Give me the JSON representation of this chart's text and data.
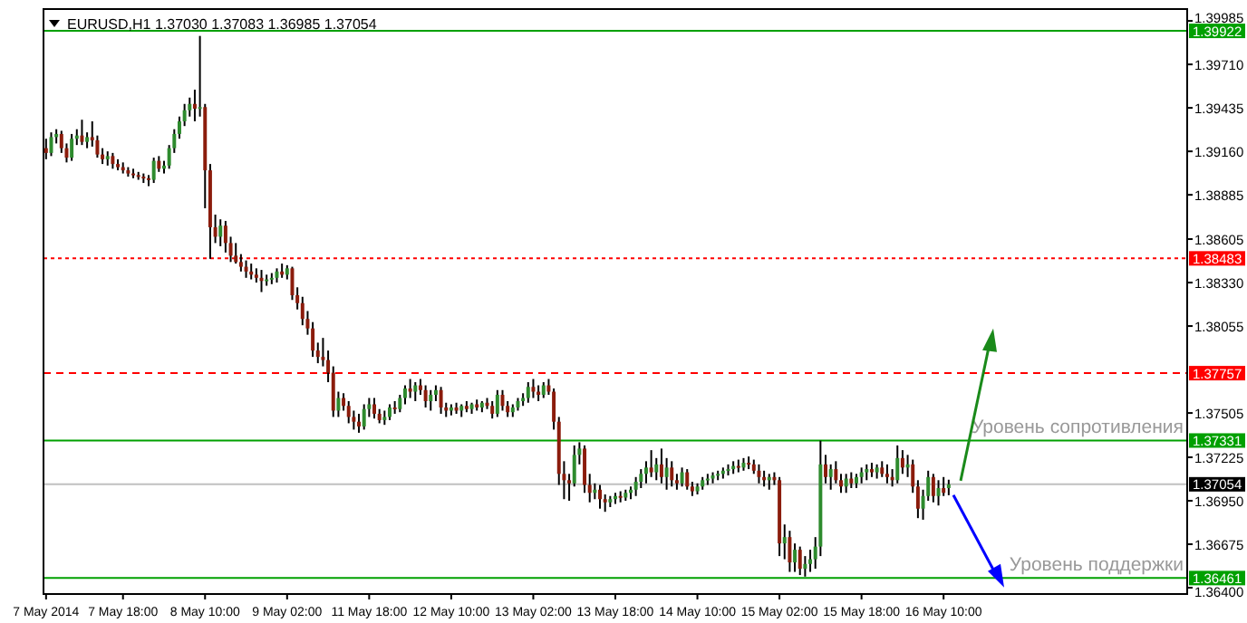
{
  "chart_data": {
    "type": "candlestick",
    "title": "EURUSD,H1 1.37030 1.37083 1.36985 1.37054",
    "categories": [
      "7 May 2014",
      null,
      null,
      null,
      null,
      null,
      null,
      null,
      null,
      null,
      null,
      null,
      null,
      null,
      null,
      "7 May 18:00",
      null,
      null,
      null,
      null,
      null,
      null,
      null,
      null,
      null,
      null,
      null,
      null,
      null,
      null,
      null,
      "8 May 10:00",
      null,
      null,
      null,
      null,
      null,
      null,
      null,
      null,
      null,
      null,
      null,
      null,
      null,
      null,
      null,
      "9 May 02:00",
      null,
      null,
      null,
      null,
      null,
      null,
      null,
      null,
      null,
      null,
      null,
      null,
      null,
      null,
      null,
      "11 May 18:00",
      null,
      null,
      null,
      null,
      null,
      null,
      null,
      null,
      null,
      null,
      null,
      null,
      null,
      null,
      null,
      "12 May 10:00",
      null,
      null,
      null,
      null,
      null,
      null,
      null,
      null,
      null,
      null,
      null,
      null,
      null,
      null,
      null,
      "13 May 02:00",
      null,
      null,
      null,
      null,
      null,
      null,
      null,
      null,
      null,
      null,
      null,
      null,
      null,
      null,
      null,
      "13 May 18:00",
      null,
      null,
      null,
      null,
      null,
      null,
      null,
      null,
      null,
      null,
      null,
      null,
      null,
      null,
      null,
      "14 May 10:00",
      null,
      null,
      null,
      null,
      null,
      null,
      null,
      null,
      null,
      null,
      null,
      null,
      null,
      null,
      null,
      "15 May 02:00",
      null,
      null,
      null,
      null,
      null,
      null,
      null,
      null,
      null,
      null,
      null,
      null,
      null,
      null,
      null,
      "15 May 18:00",
      null,
      null,
      null,
      null,
      null,
      null,
      null,
      null,
      null,
      null,
      null,
      null,
      null,
      null,
      null,
      "16 May 10:00",
      null,
      null,
      null,
      null,
      null,
      null,
      null,
      null,
      null,
      null,
      null,
      null,
      null,
      null,
      null,
      null,
      null,
      null,
      null,
      null,
      null,
      null,
      null,
      null,
      null,
      null,
      null,
      null,
      null,
      null,
      null,
      null,
      null,
      null,
      null,
      null,
      null,
      null,
      null,
      null,
      null,
      null,
      null,
      null,
      null,
      null,
      null
    ],
    "ohlc": [
      [
        1.3918,
        1.3924,
        1.3911,
        1.3915
      ],
      [
        1.3915,
        1.3928,
        1.3913,
        1.3925
      ],
      [
        1.3925,
        1.393,
        1.3921,
        1.3927
      ],
      [
        1.3927,
        1.3929,
        1.3915,
        1.3918
      ],
      [
        1.3918,
        1.3921,
        1.3909,
        1.3912
      ],
      [
        1.3912,
        1.3927,
        1.391,
        1.3924
      ],
      [
        1.3924,
        1.393,
        1.392,
        1.3926
      ],
      [
        1.3926,
        1.3936,
        1.392,
        1.3922
      ],
      [
        1.3922,
        1.3928,
        1.3918,
        1.3925
      ],
      [
        1.3925,
        1.3935,
        1.3919,
        1.3923
      ],
      [
        1.3923,
        1.3926,
        1.3912,
        1.3914
      ],
      [
        1.3914,
        1.3918,
        1.3908,
        1.3911
      ],
      [
        1.3911,
        1.3916,
        1.3907,
        1.3913
      ],
      [
        1.3913,
        1.3915,
        1.3905,
        1.3908
      ],
      [
        1.3908,
        1.3911,
        1.3904,
        1.3906
      ],
      [
        1.3906,
        1.3909,
        1.3902,
        1.3904
      ],
      [
        1.3904,
        1.3906,
        1.39,
        1.3902
      ],
      [
        1.3902,
        1.3905,
        1.3899,
        1.3901
      ],
      [
        1.3901,
        1.3903,
        1.3898,
        1.39
      ],
      [
        1.39,
        1.3902,
        1.3896,
        1.3899
      ],
      [
        1.3899,
        1.3901,
        1.3894,
        1.3898
      ],
      [
        1.3898,
        1.3912,
        1.3896,
        1.391
      ],
      [
        1.391,
        1.3913,
        1.3903,
        1.3905
      ],
      [
        1.3905,
        1.391,
        1.3902,
        1.3907
      ],
      [
        1.3907,
        1.392,
        1.3905,
        1.3918
      ],
      [
        1.3918,
        1.393,
        1.3915,
        1.3927
      ],
      [
        1.3927,
        1.3938,
        1.3924,
        1.3935
      ],
      [
        1.3935,
        1.3946,
        1.3932,
        1.3942
      ],
      [
        1.3942,
        1.395,
        1.3938,
        1.3946
      ],
      [
        1.3946,
        1.3955,
        1.3935,
        1.3943
      ],
      [
        1.3943,
        1.3989,
        1.3938,
        1.3944
      ],
      [
        1.3944,
        1.3946,
        1.388,
        1.3904
      ],
      [
        1.3904,
        1.3908,
        1.3848,
        1.3868
      ],
      [
        1.3868,
        1.3876,
        1.3858,
        1.3862
      ],
      [
        1.3862,
        1.3873,
        1.3856,
        1.3869
      ],
      [
        1.3869,
        1.3872,
        1.3852,
        1.3858
      ],
      [
        1.3858,
        1.3862,
        1.3846,
        1.385
      ],
      [
        1.385,
        1.3858,
        1.3845,
        1.3846
      ],
      [
        1.3846,
        1.3851,
        1.384,
        1.3843
      ],
      [
        1.3843,
        1.3847,
        1.3836,
        1.384
      ],
      [
        1.384,
        1.3845,
        1.3835,
        1.3838
      ],
      [
        1.3838,
        1.3842,
        1.3833,
        1.3836
      ],
      [
        1.3836,
        1.3841,
        1.3827,
        1.3834
      ],
      [
        1.3834,
        1.3838,
        1.3831,
        1.3835
      ],
      [
        1.3835,
        1.3839,
        1.3832,
        1.3836
      ],
      [
        1.3836,
        1.3842,
        1.3833,
        1.384
      ],
      [
        1.384,
        1.3845,
        1.3836,
        1.3838
      ],
      [
        1.3838,
        1.3844,
        1.3835,
        1.3842
      ],
      [
        1.3842,
        1.3843,
        1.3822,
        1.3825
      ],
      [
        1.3825,
        1.383,
        1.3816,
        1.382
      ],
      [
        1.382,
        1.3824,
        1.3806,
        1.381
      ],
      [
        1.381,
        1.3815,
        1.38,
        1.3804
      ],
      [
        1.3804,
        1.3808,
        1.3786,
        1.379
      ],
      [
        1.379,
        1.3795,
        1.3782,
        1.3786
      ],
      [
        1.3786,
        1.3798,
        1.378,
        1.3784
      ],
      [
        1.3784,
        1.379,
        1.377,
        1.3776
      ],
      [
        1.3776,
        1.378,
        1.3748,
        1.3752
      ],
      [
        1.3752,
        1.3764,
        1.3748,
        1.376
      ],
      [
        1.376,
        1.3763,
        1.3752,
        1.3755
      ],
      [
        1.3755,
        1.3758,
        1.3744,
        1.3748
      ],
      [
        1.3748,
        1.3752,
        1.374,
        1.3745
      ],
      [
        1.3745,
        1.375,
        1.3738,
        1.3742
      ],
      [
        1.3742,
        1.3756,
        1.374,
        1.3753
      ],
      [
        1.3753,
        1.376,
        1.3748,
        1.3756
      ],
      [
        1.3756,
        1.376,
        1.3747,
        1.375
      ],
      [
        1.375,
        1.3753,
        1.3744,
        1.3746
      ],
      [
        1.3746,
        1.3752,
        1.3743,
        1.3748
      ],
      [
        1.3748,
        1.3756,
        1.3746,
        1.3754
      ],
      [
        1.3754,
        1.3758,
        1.375,
        1.3753
      ],
      [
        1.3753,
        1.3762,
        1.3751,
        1.376
      ],
      [
        1.376,
        1.3768,
        1.3756,
        1.3766
      ],
      [
        1.3766,
        1.3772,
        1.376,
        1.3764
      ],
      [
        1.3764,
        1.377,
        1.3758,
        1.3768
      ],
      [
        1.3768,
        1.3772,
        1.3762,
        1.3765
      ],
      [
        1.3765,
        1.3768,
        1.3754,
        1.3758
      ],
      [
        1.3758,
        1.3765,
        1.3752,
        1.3762
      ],
      [
        1.3762,
        1.3768,
        1.3758,
        1.3765
      ],
      [
        1.3765,
        1.3767,
        1.375,
        1.3754
      ],
      [
        1.3754,
        1.3757,
        1.3748,
        1.3752
      ],
      [
        1.3752,
        1.3756,
        1.3749,
        1.3754
      ],
      [
        1.3754,
        1.3757,
        1.375,
        1.3752
      ],
      [
        1.3752,
        1.3756,
        1.3748,
        1.3755
      ],
      [
        1.3755,
        1.3758,
        1.3751,
        1.3753
      ],
      [
        1.3753,
        1.3757,
        1.375,
        1.3756
      ],
      [
        1.3756,
        1.3759,
        1.3752,
        1.3754
      ],
      [
        1.3754,
        1.3758,
        1.3751,
        1.3757
      ],
      [
        1.3757,
        1.376,
        1.3753,
        1.3755
      ],
      [
        1.3755,
        1.3758,
        1.3747,
        1.375
      ],
      [
        1.375,
        1.3765,
        1.3748,
        1.3762
      ],
      [
        1.3762,
        1.3765,
        1.3752,
        1.3755
      ],
      [
        1.3755,
        1.3758,
        1.3748,
        1.3751
      ],
      [
        1.3751,
        1.3756,
        1.3748,
        1.3754
      ],
      [
        1.3754,
        1.376,
        1.3752,
        1.3758
      ],
      [
        1.3758,
        1.3763,
        1.3755,
        1.376
      ],
      [
        1.376,
        1.377,
        1.3757,
        1.3767
      ],
      [
        1.3767,
        1.3772,
        1.376,
        1.3764
      ],
      [
        1.3764,
        1.3768,
        1.3758,
        1.3762
      ],
      [
        1.3762,
        1.377,
        1.376,
        1.3768
      ],
      [
        1.3768,
        1.3772,
        1.3762,
        1.3764
      ],
      [
        1.3764,
        1.3766,
        1.374,
        1.3745
      ],
      [
        1.3745,
        1.3748,
        1.3705,
        1.3712
      ],
      [
        1.3712,
        1.372,
        1.3696,
        1.3708
      ],
      [
        1.3708,
        1.3712,
        1.3695,
        1.3706
      ],
      [
        1.3706,
        1.373,
        1.3704,
        1.3724
      ],
      [
        1.3724,
        1.3732,
        1.3718,
        1.3728
      ],
      [
        1.3728,
        1.373,
        1.37,
        1.3705
      ],
      [
        1.3705,
        1.3712,
        1.3694,
        1.37
      ],
      [
        1.37,
        1.3706,
        1.3696,
        1.3702
      ],
      [
        1.3702,
        1.3705,
        1.369,
        1.3696
      ],
      [
        1.3696,
        1.3699,
        1.3688,
        1.3694
      ],
      [
        1.3694,
        1.3698,
        1.3691,
        1.3696
      ],
      [
        1.3696,
        1.37,
        1.3693,
        1.3698
      ],
      [
        1.3698,
        1.3701,
        1.3694,
        1.3697
      ],
      [
        1.3697,
        1.3702,
        1.3695,
        1.37
      ],
      [
        1.37,
        1.3704,
        1.3696,
        1.3702
      ],
      [
        1.3702,
        1.371,
        1.3698,
        1.3707
      ],
      [
        1.3707,
        1.3715,
        1.3703,
        1.3712
      ],
      [
        1.3712,
        1.372,
        1.3706,
        1.3716
      ],
      [
        1.3716,
        1.3727,
        1.371,
        1.3713
      ],
      [
        1.3713,
        1.3722,
        1.3708,
        1.3718
      ],
      [
        1.3718,
        1.3728,
        1.3706,
        1.371
      ],
      [
        1.371,
        1.3722,
        1.3702,
        1.3716
      ],
      [
        1.3716,
        1.372,
        1.3704,
        1.3708
      ],
      [
        1.3708,
        1.3712,
        1.3702,
        1.3706
      ],
      [
        1.3706,
        1.3716,
        1.3704,
        1.3713
      ],
      [
        1.3713,
        1.3715,
        1.3702,
        1.3704
      ],
      [
        1.3704,
        1.3707,
        1.3698,
        1.3701
      ],
      [
        1.3701,
        1.3706,
        1.3699,
        1.3704
      ],
      [
        1.3704,
        1.371,
        1.3702,
        1.3708
      ],
      [
        1.3708,
        1.3712,
        1.3705,
        1.3709
      ],
      [
        1.3709,
        1.3713,
        1.3706,
        1.3711
      ],
      [
        1.3711,
        1.3714,
        1.3708,
        1.3712
      ],
      [
        1.3712,
        1.3716,
        1.3709,
        1.3714
      ],
      [
        1.3714,
        1.3718,
        1.3711,
        1.3715
      ],
      [
        1.3715,
        1.372,
        1.3712,
        1.3717
      ],
      [
        1.3717,
        1.3721,
        1.3713,
        1.3716
      ],
      [
        1.3716,
        1.3722,
        1.3714,
        1.3719
      ],
      [
        1.3719,
        1.3723,
        1.3715,
        1.3718
      ],
      [
        1.3718,
        1.3721,
        1.3712,
        1.3714
      ],
      [
        1.3714,
        1.3718,
        1.3706,
        1.371
      ],
      [
        1.371,
        1.3714,
        1.3704,
        1.3708
      ],
      [
        1.3708,
        1.3712,
        1.3702,
        1.371
      ],
      [
        1.371,
        1.3713,
        1.3705,
        1.3708
      ],
      [
        1.3708,
        1.371,
        1.366,
        1.3668
      ],
      [
        1.3668,
        1.368,
        1.3658,
        1.3672
      ],
      [
        1.3672,
        1.3676,
        1.365,
        1.3656
      ],
      [
        1.3656,
        1.3668,
        1.365,
        1.3664
      ],
      [
        1.3664,
        1.3666,
        1.3648,
        1.3652
      ],
      [
        1.3652,
        1.366,
        1.3647,
        1.3655
      ],
      [
        1.3655,
        1.3664,
        1.365,
        1.3658
      ],
      [
        1.3658,
        1.3672,
        1.3652,
        1.3666
      ],
      [
        1.3666,
        1.3733,
        1.366,
        1.3718
      ],
      [
        1.3718,
        1.3724,
        1.3706,
        1.371
      ],
      [
        1.371,
        1.3718,
        1.3702,
        1.3715
      ],
      [
        1.3715,
        1.372,
        1.3706,
        1.3708
      ],
      [
        1.3708,
        1.3712,
        1.37,
        1.3704
      ],
      [
        1.3704,
        1.3712,
        1.37,
        1.3709
      ],
      [
        1.3709,
        1.3713,
        1.3703,
        1.3706
      ],
      [
        1.3706,
        1.3712,
        1.3703,
        1.371
      ],
      [
        1.371,
        1.3716,
        1.3706,
        1.3713
      ],
      [
        1.3713,
        1.3718,
        1.3708,
        1.3715
      ],
      [
        1.3715,
        1.3719,
        1.371,
        1.3713
      ],
      [
        1.3713,
        1.3718,
        1.3709,
        1.3716
      ],
      [
        1.3716,
        1.372,
        1.371,
        1.3712
      ],
      [
        1.3712,
        1.3718,
        1.3706,
        1.371
      ],
      [
        1.371,
        1.3715,
        1.3704,
        1.3708
      ],
      [
        1.3708,
        1.373,
        1.3706,
        1.3722
      ],
      [
        1.3722,
        1.3727,
        1.3712,
        1.3716
      ],
      [
        1.3716,
        1.3724,
        1.371,
        1.3718
      ],
      [
        1.3718,
        1.3721,
        1.37,
        1.3704
      ],
      [
        1.3704,
        1.3708,
        1.3684,
        1.369
      ],
      [
        1.369,
        1.3702,
        1.3683,
        1.3698
      ],
      [
        1.3698,
        1.3714,
        1.3695,
        1.371
      ],
      [
        1.371,
        1.3712,
        1.3694,
        1.3698
      ],
      [
        1.3698,
        1.3708,
        1.3692,
        1.3703
      ],
      [
        1.3703,
        1.371,
        1.3698,
        1.37
      ],
      [
        1.3703,
        1.37083,
        1.36985,
        1.37054
      ],
      null,
      null,
      null,
      null,
      null,
      null,
      null,
      null,
      null,
      null,
      null,
      null,
      null,
      null,
      null,
      null,
      null,
      null,
      null,
      null,
      null,
      null,
      null,
      null,
      null,
      null,
      null,
      null,
      null,
      null,
      null,
      null,
      null,
      null,
      null,
      null,
      null,
      null,
      null,
      null,
      null,
      null,
      null,
      null,
      null,
      null
    ],
    "ylim": [
      1.3636,
      1.4006
    ],
    "yticks": [
      1.39985,
      {
        "value": 1.3971,
        "label": "1.39710"
      },
      1.39435,
      {
        "value": 1.3916,
        "label": "1.39160"
      },
      1.38885,
      1.38605,
      {
        "value": 1.3833,
        "label": "1.38330"
      },
      1.38055,
      1.37505,
      1.37225,
      {
        "value": 1.3695,
        "label": "1.36950"
      },
      1.36675,
      {
        "value": 1.364,
        "label": "1.36400"
      }
    ],
    "ref_lines": [
      {
        "axis": "y",
        "value": 1.39922,
        "label": "1.39922",
        "color": "#00a000",
        "line_style": "solid"
      },
      {
        "axis": "y",
        "value": 1.38483,
        "label": "1.38483",
        "color": "#ff0000",
        "line_style": "dotted"
      },
      {
        "axis": "y",
        "value": 1.37757,
        "label": "1.37757",
        "color": "#ff0000",
        "line_style": "dashed"
      },
      {
        "axis": "y",
        "value": 1.37331,
        "label": "1.37331",
        "color": "#00a000",
        "line_style": "solid"
      },
      {
        "axis": "y",
        "value": 1.37054,
        "label": "1.37054",
        "color": "#c0c0c0",
        "line_style": "solid"
      },
      {
        "axis": "y",
        "value": 1.36461,
        "label": "1.36461",
        "color": "#00a000",
        "line_style": "solid"
      }
    ],
    "annotations": [
      {
        "text": "Уровень сопротивления",
        "y": 1.37331
      },
      {
        "text": "Уровень поддержки",
        "y": 1.36461
      }
    ]
  }
}
